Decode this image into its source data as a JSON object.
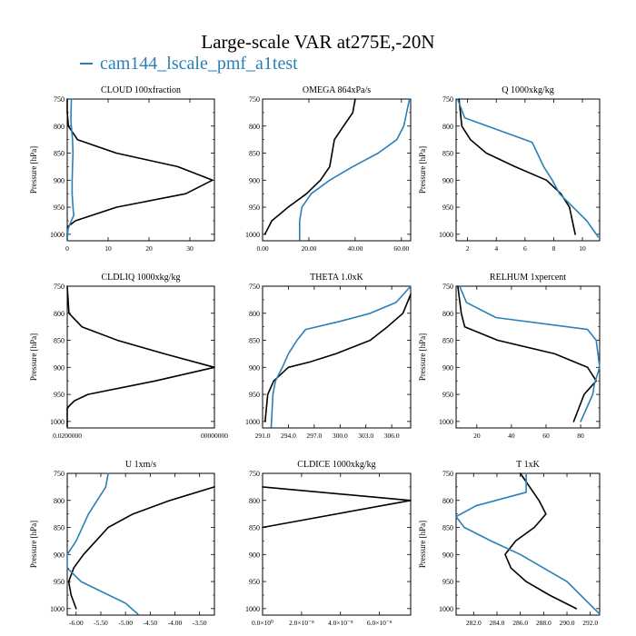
{
  "figure": {
    "title": "Large-scale VAR at275E,-20N",
    "legend": [
      {
        "label": "cam144_lscale_pmf_a1test",
        "color": "#2a7fb8"
      }
    ],
    "series_colors": {
      "reference": "#000000",
      "cam144_lscale_pmf_a1test": "#2a7fb8"
    }
  },
  "chart_data": [
    {
      "type": "line",
      "title": "CLOUD  100xfraction",
      "ylabel": "Pressure [hPa]",
      "xlim": [
        0,
        36
      ],
      "ylim": [
        1012,
        750
      ],
      "xticks": [
        0,
        10,
        20,
        30
      ],
      "xticklabels": [
        "0",
        "10",
        "20",
        "30"
      ],
      "yticks": [
        750,
        800,
        850,
        900,
        950,
        1000
      ],
      "yticklabels": [
        "750",
        "800",
        "850",
        "900",
        "950",
        "1000"
      ],
      "series": [
        {
          "color": "#000000",
          "x": [
            0,
            0,
            0.3,
            2.5,
            12,
            27,
            35.5,
            29,
            12,
            2,
            0.3,
            0,
            0
          ],
          "y": [
            750,
            775,
            800,
            825,
            850,
            875,
            900,
            925,
            950,
            975,
            985,
            1000,
            1010
          ]
        },
        {
          "color": "#2a7fb8",
          "x": [
            1,
            0.9,
            1.3,
            1.4,
            1.3,
            1.2,
            1.2,
            1.4,
            1.6,
            1.0,
            0.2,
            0
          ],
          "y": [
            750,
            790,
            825,
            850,
            875,
            900,
            925,
            950,
            965,
            975,
            990,
            1010
          ]
        }
      ]
    },
    {
      "type": "line",
      "title": "OMEGA  864xPa/s",
      "ylabel": "",
      "xlim": [
        0,
        64
      ],
      "ylim": [
        1012,
        750
      ],
      "xticks": [
        0,
        20,
        40,
        60
      ],
      "xticklabels": [
        "0.00",
        "20.00",
        "40.00",
        "60.00"
      ],
      "yticks": [
        750,
        800,
        850,
        900,
        950,
        1000
      ],
      "yticklabels": [
        "750",
        "800",
        "850",
        "900",
        "950",
        "1000"
      ],
      "series": [
        {
          "color": "#000000",
          "x": [
            40,
            39,
            35,
            31,
            29,
            25,
            19,
            11,
            4,
            1
          ],
          "y": [
            750,
            775,
            800,
            825,
            875,
            900,
            925,
            950,
            975,
            1000
          ]
        },
        {
          "color": "#2a7fb8",
          "x": [
            63.5,
            61,
            58,
            50,
            39,
            29,
            21,
            17,
            16,
            16
          ],
          "y": [
            750,
            800,
            825,
            850,
            875,
            900,
            925,
            950,
            975,
            1010
          ]
        }
      ]
    },
    {
      "type": "line",
      "title": "Q  1000xkg/kg",
      "ylabel": "Pressure [hPa]",
      "xlim": [
        1.2,
        11.2
      ],
      "ylim": [
        1012,
        750
      ],
      "xticks": [
        2,
        4,
        6,
        8,
        10
      ],
      "xticklabels": [
        "2",
        "4",
        "6",
        "8",
        "10"
      ],
      "yticks": [
        750,
        800,
        850,
        900,
        950,
        1000
      ],
      "yticklabels": [
        "750",
        "800",
        "850",
        "900",
        "950",
        "1000"
      ],
      "series": [
        {
          "color": "#000000",
          "x": [
            1.4,
            1.6,
            2.2,
            3.3,
            5.3,
            7.5,
            8.5,
            9.1,
            9.5
          ],
          "y": [
            750,
            800,
            825,
            850,
            875,
            900,
            925,
            950,
            1000
          ]
        },
        {
          "color": "#2a7fb8",
          "x": [
            1.3,
            1.8,
            6.5,
            7.3,
            7.9,
            8.4,
            10.3,
            11.1
          ],
          "y": [
            750,
            785,
            830,
            875,
            900,
            925,
            975,
            1005
          ]
        }
      ]
    },
    {
      "type": "line",
      "title": "CLDLIQ  1000xkg/kg",
      "ylabel": "Pressure [hPa]",
      "xlim": [
        0.02,
        0.0225
      ],
      "ylim": [
        1012,
        750
      ],
      "xticks": [
        0.02,
        0.0225
      ],
      "xticklabels": [
        "0.0200000",
        "00000000"
      ],
      "yticks": [
        750,
        800,
        850,
        900,
        950,
        1000
      ],
      "yticklabels": [
        "750",
        "800",
        "850",
        "900",
        "950",
        "1000"
      ],
      "series": [
        {
          "color": "#000000",
          "x": [
            0.02,
            0.02003,
            0.02025,
            0.02085,
            0.02165,
            0.0225,
            0.0215,
            0.02035,
            0.02012,
            0.02,
            0.02
          ],
          "y": [
            750,
            800,
            825,
            850,
            875,
            900,
            925,
            950,
            962,
            975,
            1010
          ]
        }
      ]
    },
    {
      "type": "line",
      "title": "THETA  1.0xK",
      "ylabel": "",
      "xlim": [
        291,
        308.2
      ],
      "ylim": [
        1012,
        750
      ],
      "xticks": [
        291,
        294,
        297,
        300,
        303,
        306
      ],
      "xticklabels": [
        "291.0",
        "294.0",
        "297.0",
        "300.0",
        "303.0",
        "306.0"
      ],
      "yticks": [
        750,
        800,
        850,
        900,
        950,
        1000
      ],
      "yticklabels": [
        "750",
        "800",
        "850",
        "900",
        "950",
        "1000"
      ],
      "series": [
        {
          "color": "#000000",
          "x": [
            308.2,
            307.3,
            305.5,
            303.5,
            299.5,
            296.5,
            294,
            292.3,
            291.6,
            291.3
          ],
          "y": [
            765,
            800,
            825,
            850,
            875,
            890,
            900,
            925,
            950,
            1000
          ]
        },
        {
          "color": "#2a7fb8",
          "x": [
            308.2,
            306.5,
            303.5,
            300,
            296,
            295,
            294,
            293.3,
            292.5,
            292.2,
            292
          ],
          "y": [
            750,
            780,
            800,
            815,
            830,
            850,
            875,
            900,
            925,
            950,
            1010
          ]
        }
      ]
    },
    {
      "type": "line",
      "title": "RELHUM  1xpercent",
      "ylabel": "Pressure [hPa]",
      "xlim": [
        8,
        91
      ],
      "ylim": [
        1012,
        750
      ],
      "xticks": [
        20,
        40,
        60,
        80
      ],
      "xticklabels": [
        "20",
        "40",
        "60",
        "80"
      ],
      "yticks": [
        750,
        800,
        850,
        900,
        950,
        1000
      ],
      "yticklabels": [
        "750",
        "800",
        "850",
        "900",
        "950",
        "1000"
      ],
      "series": [
        {
          "color": "#000000",
          "x": [
            9,
            11,
            13,
            32,
            65,
            84,
            89,
            82,
            76
          ],
          "y": [
            750,
            800,
            825,
            850,
            875,
            900,
            925,
            950,
            1000
          ]
        },
        {
          "color": "#2a7fb8",
          "x": [
            10,
            14,
            31,
            84,
            89,
            91,
            88,
            87,
            80
          ],
          "y": [
            750,
            780,
            808,
            830,
            850,
            900,
            930,
            950,
            1000
          ]
        }
      ]
    },
    {
      "type": "line",
      "title": "U  1xm/s",
      "ylabel": "Pressure [hPa]",
      "xlim": [
        -6.18,
        -3.2
      ],
      "ylim": [
        1012,
        750
      ],
      "xticks": [
        -6,
        -5.5,
        -5,
        -4.5,
        -4,
        -3.5
      ],
      "xticklabels": [
        "-6.00",
        "-5.50",
        "-5.00",
        "-4.50",
        "-4.00",
        "-3.50"
      ],
      "yticks": [
        750,
        800,
        850,
        900,
        950,
        1000
      ],
      "yticklabels": [
        "750",
        "800",
        "850",
        "900",
        "950",
        "1000"
      ],
      "series": [
        {
          "color": "#000000",
          "x": [
            -3.2,
            -4.1,
            -4.85,
            -5.35,
            -5.6,
            -5.85,
            -6.05,
            -6.15,
            -6.1,
            -6.0
          ],
          "y": [
            775,
            800,
            825,
            850,
            875,
            900,
            925,
            950,
            975,
            1000
          ]
        },
        {
          "color": "#2a7fb8",
          "x": [
            -5.35,
            -5.4,
            -5.75,
            -6.0,
            -6.18,
            -6.18,
            -5.9,
            -5.0,
            -4.75
          ],
          "y": [
            750,
            775,
            825,
            875,
            900,
            925,
            950,
            990,
            1010
          ]
        }
      ]
    },
    {
      "type": "line",
      "title": "CLDICE  1000xkg/kg",
      "ylabel": "",
      "xlim": [
        0,
        7.6e-08
      ],
      "ylim": [
        1012,
        750
      ],
      "xticks": [
        0,
        2e-08,
        4e-08,
        6e-08
      ],
      "xticklabels": [
        "0.0×10⁰",
        "2.0×10⁻⁸",
        "4.0×10⁻⁸",
        "6.0×10⁻⁸"
      ],
      "yticks": [
        750,
        800,
        850,
        900,
        950,
        1000
      ],
      "yticklabels": [
        "750",
        "800",
        "850",
        "900",
        "950",
        "1000"
      ],
      "series": [
        {
          "color": "#000000",
          "x": [
            0,
            7.6e-08,
            0
          ],
          "y": [
            775,
            800,
            850
          ]
        }
      ]
    },
    {
      "type": "line",
      "title": "T  1xK",
      "ylabel": "Pressure [hPa]",
      "xlim": [
        280.5,
        292.8
      ],
      "ylim": [
        1012,
        750
      ],
      "xticks": [
        282,
        284,
        286,
        288,
        290,
        292
      ],
      "xticklabels": [
        "282.0",
        "284.0",
        "286.0",
        "288.0",
        "290.0",
        "292.0"
      ],
      "yticks": [
        750,
        800,
        850,
        900,
        950,
        1000
      ],
      "yticklabels": [
        "750",
        "800",
        "850",
        "900",
        "950",
        "1000"
      ],
      "series": [
        {
          "color": "#000000",
          "x": [
            286,
            287.6,
            288.2,
            287.2,
            285.6,
            284.7,
            285.2,
            286.5,
            288.5,
            290.8
          ],
          "y": [
            750,
            800,
            825,
            850,
            875,
            900,
            925,
            950,
            975,
            1000
          ]
        },
        {
          "color": "#2a7fb8",
          "x": [
            286.5,
            286.5,
            282.2,
            280.5,
            281.2,
            283.5,
            286,
            290,
            292.8
          ],
          "y": [
            750,
            785,
            810,
            830,
            850,
            875,
            900,
            950,
            1010
          ]
        }
      ]
    }
  ]
}
